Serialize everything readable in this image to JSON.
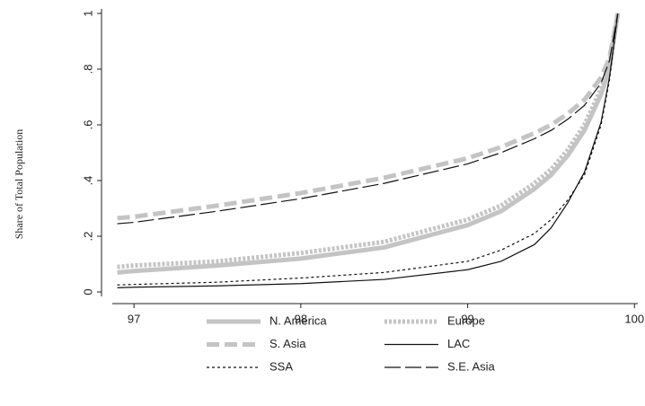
{
  "chart_data": {
    "type": "line",
    "y_label": "Share of Total Population",
    "x": [
      96.9,
      97,
      97.5,
      98,
      98.5,
      99,
      99.2,
      99.4,
      99.5,
      99.6,
      99.7,
      99.8,
      99.85,
      99.9
    ],
    "series": [
      {
        "name": "N. America",
        "color": "#c4c4c4",
        "dash": "solid",
        "width": 5,
        "values": [
          0.07,
          0.075,
          0.095,
          0.12,
          0.16,
          0.24,
          0.29,
          0.37,
          0.42,
          0.49,
          0.58,
          0.71,
          0.8,
          1
        ]
      },
      {
        "name": "Europe",
        "color": "#c4c4c4",
        "dash": "dot",
        "width": 5,
        "values": [
          0.09,
          0.095,
          0.11,
          0.14,
          0.18,
          0.26,
          0.31,
          0.39,
          0.44,
          0.51,
          0.6,
          0.73,
          0.82,
          1
        ]
      },
      {
        "name": "S. Asia",
        "color": "#c4c4c4",
        "dash": "dash",
        "width": 5,
        "values": [
          0.265,
          0.27,
          0.31,
          0.355,
          0.41,
          0.48,
          0.52,
          0.57,
          0.6,
          0.64,
          0.69,
          0.77,
          0.84,
          1
        ]
      },
      {
        "name": "LAC",
        "color": "#111111",
        "dash": "solid",
        "width": 1.2,
        "values": [
          0.015,
          0.017,
          0.022,
          0.03,
          0.045,
          0.08,
          0.11,
          0.17,
          0.23,
          0.32,
          0.43,
          0.61,
          0.77,
          1
        ]
      },
      {
        "name": "SSA",
        "color": "#111111",
        "dash": "shortdash",
        "width": 1.2,
        "values": [
          0.025,
          0.027,
          0.035,
          0.05,
          0.07,
          0.11,
          0.15,
          0.21,
          0.26,
          0.33,
          0.42,
          0.6,
          0.76,
          1
        ]
      },
      {
        "name": "S.E. Asia",
        "color": "#111111",
        "dash": "longdash",
        "width": 1.2,
        "values": [
          0.245,
          0.25,
          0.29,
          0.335,
          0.39,
          0.46,
          0.5,
          0.55,
          0.58,
          0.62,
          0.67,
          0.75,
          0.83,
          1
        ]
      }
    ],
    "xlim": [
      96.87,
      100.02
    ],
    "xticks": [
      97,
      98,
      99,
      100
    ],
    "ylim": [
      -0.016,
      1.016
    ],
    "yticks": [
      0,
      {
        "value": 0.2,
        "label": ".2"
      },
      {
        "value": 0.4,
        "label": ".4"
      },
      {
        "value": 0.6,
        "label": ".6"
      },
      {
        "value": 0.8,
        "label": ".8"
      },
      1
    ],
    "grid": false,
    "legend": "bottom"
  }
}
